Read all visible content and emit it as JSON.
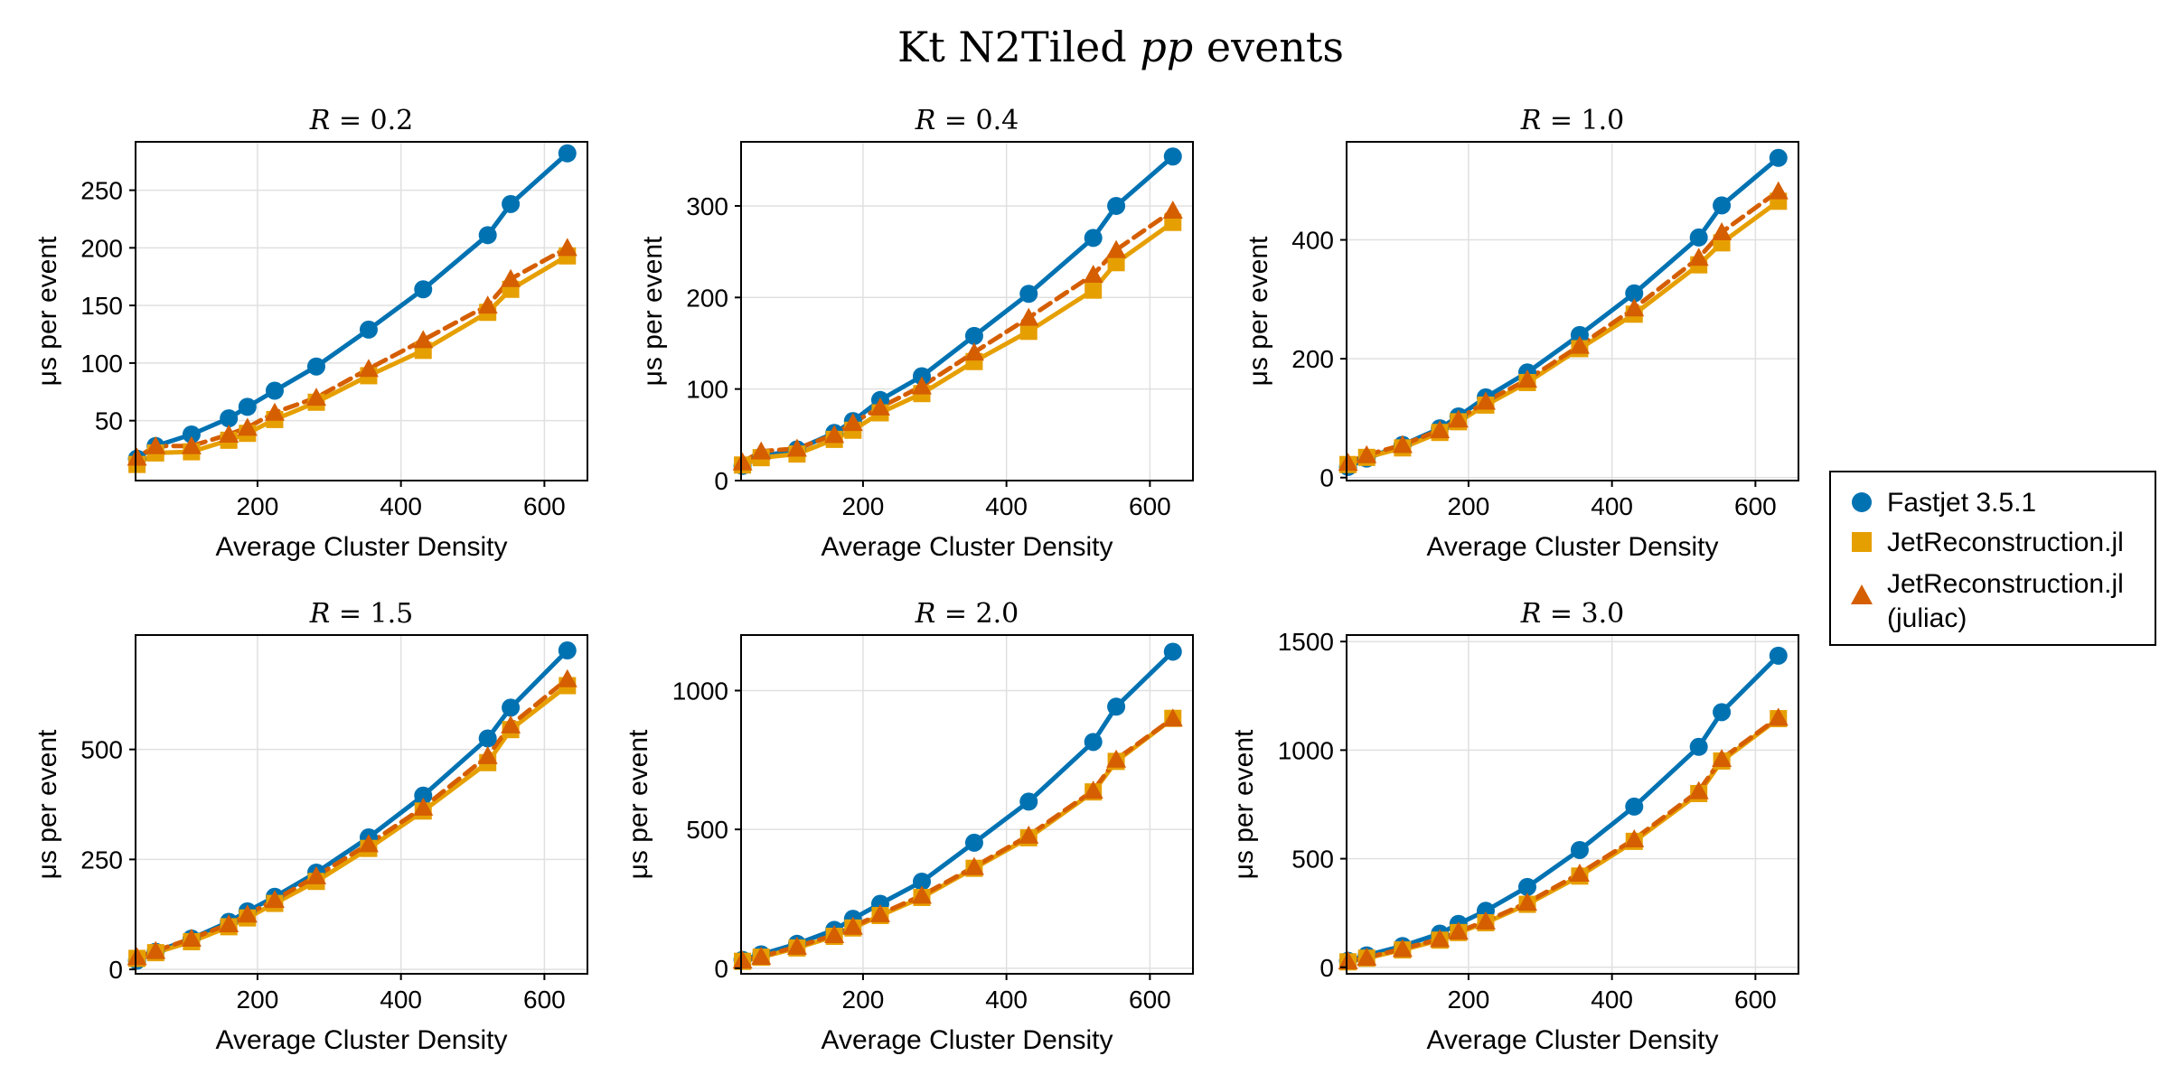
{
  "figure": {
    "title_main": "Kt N2Tiled ",
    "title_italic": "pp",
    "title_end": " events"
  },
  "legend": {
    "items": [
      {
        "label": "Fastjet 3.5.1",
        "marker": "circle",
        "color": "#0072b2"
      },
      {
        "label": "JetReconstruction.jl",
        "marker": "square",
        "color": "#e69f00"
      },
      {
        "label": "JetReconstruction.jl",
        "label2": "(juliac)",
        "marker": "triangle",
        "color": "#d55e00"
      }
    ]
  },
  "colors": {
    "fastjet": "#0072b2",
    "julia": "#e69f00",
    "juliac": "#d55e00"
  },
  "chart_data": [
    {
      "type": "line",
      "title": "R = 0.2",
      "xlabel": "Average Cluster Density",
      "ylabel": "μs per event",
      "xlim": [
        30,
        660
      ],
      "ylim": [
        -2,
        292
      ],
      "xticks": [
        200,
        400,
        600
      ],
      "yticks": [
        50,
        100,
        150,
        200,
        250
      ],
      "x": [
        32,
        58,
        108,
        160,
        186,
        224,
        282,
        355,
        431,
        521,
        553,
        632
      ],
      "series": [
        {
          "name": "Fastjet 3.5.1",
          "values": [
            17,
            28,
            38,
            52,
            62,
            76,
            97,
            129,
            164,
            211,
            238,
            282
          ]
        },
        {
          "name": "JetReconstruction.jl",
          "values": [
            12,
            22,
            23,
            33,
            39,
            51,
            66,
            89,
            111,
            144,
            164,
            193
          ]
        },
        {
          "name": "JetReconstruction.jl (juliac)",
          "values": [
            18,
            28,
            28,
            38,
            44,
            57,
            70,
            95,
            120,
            150,
            173,
            200
          ]
        }
      ],
      "grid": true
    },
    {
      "type": "line",
      "title": "R = 0.4",
      "xlabel": "Average Cluster Density",
      "ylabel": "μs per event",
      "xlim": [
        30,
        660
      ],
      "ylim": [
        0,
        370
      ],
      "xticks": [
        200,
        400,
        600
      ],
      "yticks": [
        0,
        100,
        200,
        300
      ],
      "x": [
        32,
        58,
        108,
        160,
        186,
        224,
        282,
        355,
        431,
        521,
        553,
        632
      ],
      "series": [
        {
          "name": "Fastjet 3.5.1",
          "values": [
            16,
            26,
            34,
            52,
            65,
            88,
            114,
            158,
            204,
            265,
            300,
            354
          ]
        },
        {
          "name": "JetReconstruction.jl",
          "values": [
            17,
            25,
            29,
            45,
            55,
            74,
            95,
            130,
            163,
            208,
            238,
            282
          ]
        },
        {
          "name": "JetReconstruction.jl (juliac)",
          "values": [
            20,
            32,
            35,
            50,
            63,
            80,
            103,
            140,
            178,
            225,
            252,
            295
          ]
        }
      ],
      "grid": true
    },
    {
      "type": "line",
      "title": "R = 1.0",
      "xlabel": "Average Cluster Density",
      "ylabel": "μs per event",
      "xlim": [
        30,
        660
      ],
      "ylim": [
        -5,
        565
      ],
      "xticks": [
        200,
        400,
        600
      ],
      "yticks": [
        0,
        200,
        400
      ],
      "x": [
        32,
        58,
        108,
        160,
        186,
        224,
        282,
        355,
        431,
        521,
        553,
        632
      ],
      "series": [
        {
          "name": "Fastjet 3.5.1",
          "values": [
            18,
            32,
            55,
            83,
            103,
            135,
            177,
            240,
            310,
            404,
            458,
            538
          ]
        },
        {
          "name": "JetReconstruction.jl",
          "values": [
            22,
            34,
            50,
            76,
            94,
            122,
            160,
            217,
            275,
            358,
            395,
            465
          ]
        },
        {
          "name": "JetReconstruction.jl (juliac)",
          "values": [
            25,
            38,
            55,
            80,
            98,
            128,
            165,
            222,
            285,
            370,
            413,
            482
          ]
        }
      ],
      "grid": true
    },
    {
      "type": "line",
      "title": "R = 1.5",
      "xlabel": "Average Cluster Density",
      "ylabel": "μs per event",
      "xlim": [
        30,
        660
      ],
      "ylim": [
        -10,
        760
      ],
      "xticks": [
        200,
        400,
        600
      ],
      "yticks": [
        0,
        250,
        500
      ],
      "x": [
        32,
        58,
        108,
        160,
        186,
        224,
        282,
        355,
        431,
        521,
        553,
        632
      ],
      "series": [
        {
          "name": "Fastjet 3.5.1",
          "values": [
            20,
            40,
            70,
            108,
            132,
            165,
            220,
            300,
            395,
            525,
            595,
            725
          ]
        },
        {
          "name": "JetReconstruction.jl",
          "values": [
            25,
            38,
            63,
            97,
            117,
            150,
            200,
            275,
            360,
            470,
            545,
            645
          ]
        },
        {
          "name": "JetReconstruction.jl (juliac)",
          "values": [
            28,
            42,
            70,
            103,
            125,
            158,
            212,
            285,
            368,
            485,
            555,
            660
          ]
        }
      ],
      "grid": true
    },
    {
      "type": "line",
      "title": "R = 2.0",
      "xlabel": "Average Cluster Density",
      "ylabel": "μs per event",
      "xlim": [
        30,
        660
      ],
      "ylim": [
        -20,
        1200
      ],
      "xticks": [
        200,
        400,
        600
      ],
      "yticks": [
        0,
        500,
        1000
      ],
      "x": [
        32,
        58,
        108,
        160,
        186,
        224,
        282,
        355,
        431,
        521,
        553,
        632
      ],
      "series": [
        {
          "name": "Fastjet 3.5.1",
          "values": [
            30,
            50,
            88,
            138,
            178,
            232,
            312,
            452,
            600,
            815,
            942,
            1140
          ]
        },
        {
          "name": "JetReconstruction.jl",
          "values": [
            25,
            40,
            73,
            115,
            145,
            190,
            255,
            360,
            470,
            635,
            745,
            900
          ]
        },
        {
          "name": "JetReconstruction.jl (juliac)",
          "values": [
            28,
            42,
            78,
            120,
            150,
            195,
            262,
            365,
            478,
            640,
            752,
            900
          ]
        }
      ],
      "grid": true
    },
    {
      "type": "line",
      "title": "R = 3.0",
      "xlabel": "Average Cluster Density",
      "ylabel": "μs per event",
      "xlim": [
        30,
        660
      ],
      "ylim": [
        -30,
        1530
      ],
      "xticks": [
        200,
        400,
        600
      ],
      "yticks": [
        0,
        500,
        1000,
        1500
      ],
      "x": [
        32,
        58,
        108,
        160,
        186,
        224,
        282,
        355,
        431,
        521,
        553,
        632
      ],
      "series": [
        {
          "name": "Fastjet 3.5.1",
          "values": [
            30,
            55,
            98,
            155,
            200,
            260,
            370,
            540,
            740,
            1015,
            1175,
            1435
          ]
        },
        {
          "name": "JetReconstruction.jl",
          "values": [
            25,
            42,
            80,
            125,
            160,
            205,
            290,
            420,
            580,
            800,
            950,
            1145
          ]
        },
        {
          "name": "JetReconstruction.jl (juliac)",
          "values": [
            28,
            45,
            85,
            130,
            165,
            212,
            298,
            432,
            590,
            812,
            960,
            1150
          ]
        }
      ],
      "grid": true
    }
  ]
}
